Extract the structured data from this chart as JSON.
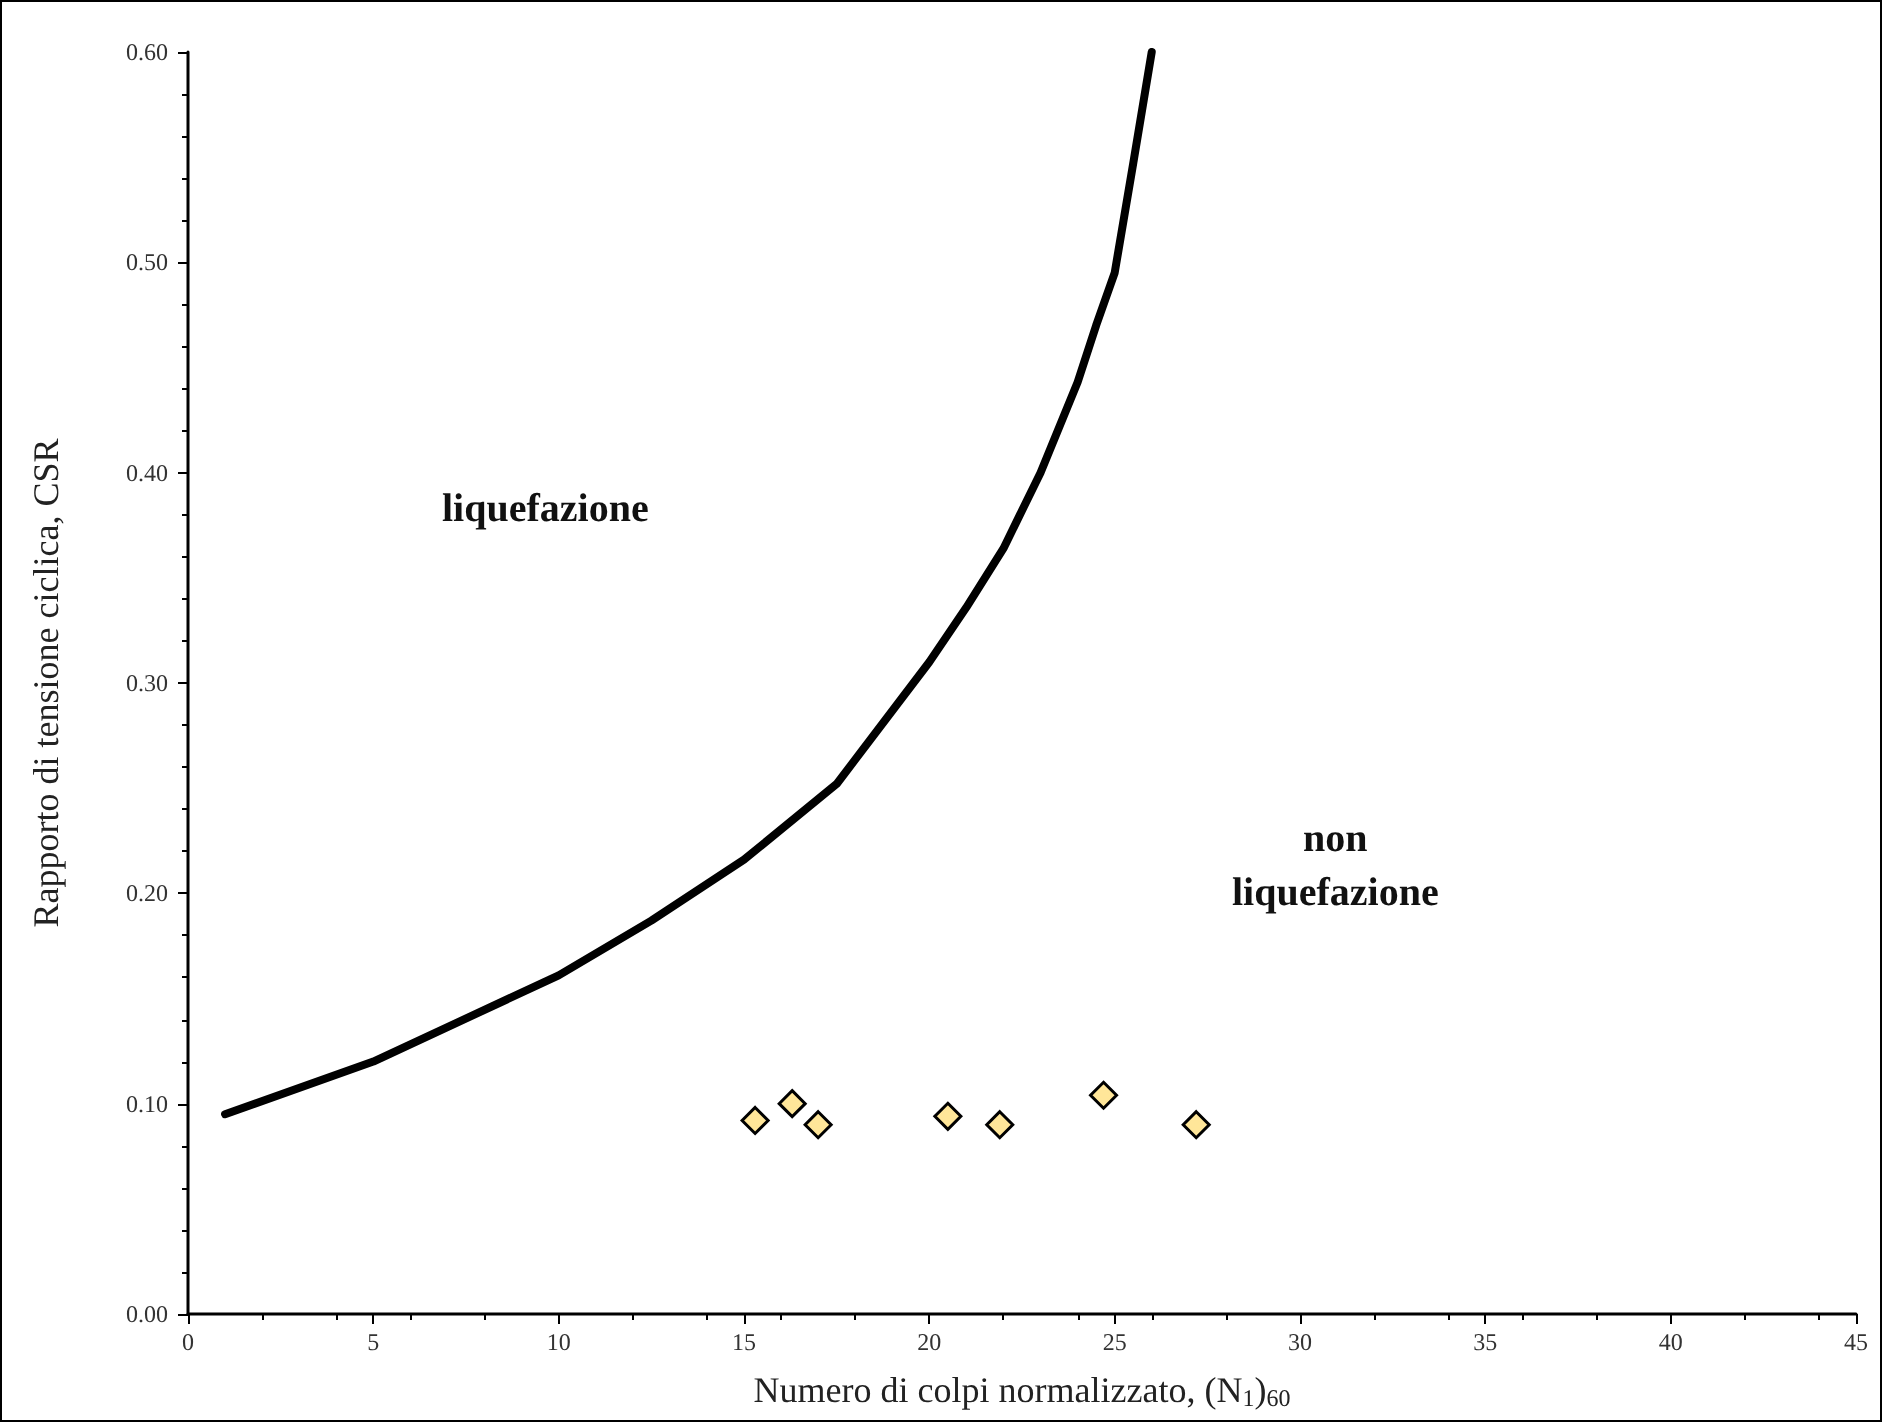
{
  "chart_data": {
    "type": "scatter",
    "xlabel": "Numero di colpi normalizzato, (N$_{1}$)$_{60}$",
    "ylabel": "Rapporto di tensione ciclica, CSR",
    "xlim": [
      0,
      45
    ],
    "xticks": [
      0,
      5,
      10,
      15,
      20,
      25,
      30,
      35,
      40,
      45
    ],
    "ylim": [
      0,
      0.6
    ],
    "yticks": [
      {
        "value": 0,
        "label": "0.00"
      },
      {
        "value": 0.1,
        "label": "0.10"
      },
      {
        "value": 0.2,
        "label": "0.20"
      },
      {
        "value": 0.3,
        "label": "0.30"
      },
      {
        "value": 0.4,
        "label": "0.40"
      },
      {
        "value": 0.5,
        "label": "0.50"
      },
      {
        "value": 0.6,
        "label": "0.60"
      }
    ],
    "grid": false,
    "annotations": [
      "liquefazione",
      "non\nliquefazione"
    ],
    "series": [
      {
        "type": "line",
        "color": "#000000",
        "marker": "none",
        "line_style": "solid",
        "x": [
          1,
          5,
          10,
          12.5,
          15,
          17.5,
          20,
          21,
          22,
          23,
          24,
          24.5,
          25,
          25.5,
          26
        ],
        "values": [
          0.095,
          0.12,
          0.161,
          0.187,
          0.216,
          0.252,
          0.31,
          0.336,
          0.364,
          0.4,
          0.443,
          0.47,
          0.495,
          0.547,
          0.6
        ]
      },
      {
        "color": "#ffe699",
        "marker": "diamond",
        "x": [
          15.3,
          16.3,
          17.0,
          20.5,
          21.9,
          24.7,
          27.2
        ],
        "values": [
          0.092,
          0.1,
          0.09,
          0.094,
          0.09,
          0.104,
          0.09
        ]
      }
    ]
  }
}
